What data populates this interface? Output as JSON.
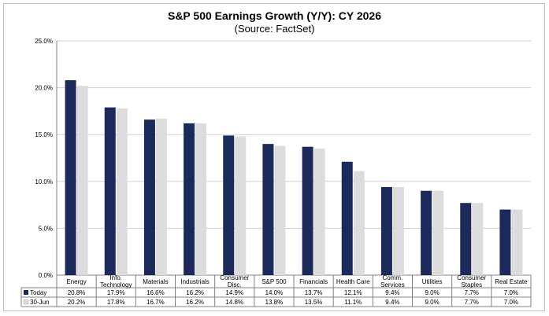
{
  "chart_data": {
    "type": "bar",
    "title": "S&P 500 Earnings Growth (Y/Y): CY 2026",
    "subtitle": "(Source: FactSet)",
    "categories": [
      "Energy",
      "Info.\nTechnology",
      "Materials",
      "Industrials",
      "Consumer\nDisc.",
      "S&P 500",
      "Financials",
      "Health Care",
      "Comm.\nServices",
      "Utilities",
      "Consumer\nStaples",
      "Real Estate"
    ],
    "series": [
      {
        "name": "Today",
        "color": "#1b2a5b",
        "values": [
          20.8,
          17.9,
          16.6,
          16.2,
          14.9,
          14.0,
          13.7,
          12.1,
          9.4,
          9.0,
          7.7,
          7.0
        ],
        "labels": [
          "20.8%",
          "17.9%",
          "16.6%",
          "16.2%",
          "14.9%",
          "14.0%",
          "13.7%",
          "12.1%",
          "9.4%",
          "9.0%",
          "7.7%",
          "7.0%"
        ]
      },
      {
        "name": "30-Jun",
        "color": "#dcdcdc",
        "values": [
          20.2,
          17.8,
          16.7,
          16.2,
          14.8,
          13.8,
          13.5,
          11.1,
          9.4,
          9.0,
          7.7,
          7.0
        ],
        "labels": [
          "20.2%",
          "17.8%",
          "16.7%",
          "16.2%",
          "14.8%",
          "13.8%",
          "13.5%",
          "11.1%",
          "9.4%",
          "9.0%",
          "7.7%",
          "7.0%"
        ]
      }
    ],
    "ylim": [
      0,
      25
    ],
    "yticks": [
      "0.0%",
      "5.0%",
      "10.0%",
      "15.0%",
      "20.0%",
      "25.0%"
    ],
    "grid": true,
    "legend": "data-table"
  }
}
